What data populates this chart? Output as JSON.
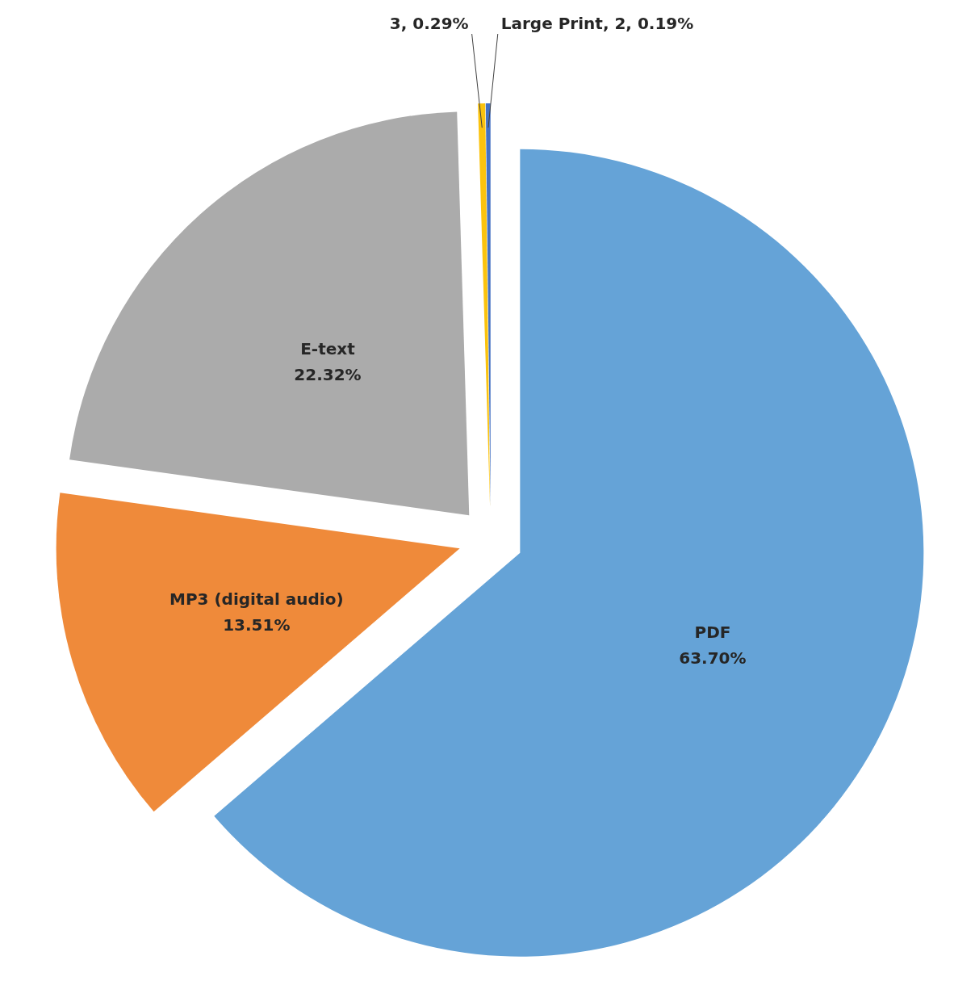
{
  "chart_data": {
    "type": "pie",
    "categories": [
      "PDF",
      "MP3 (digital audio)",
      "E-text",
      null,
      "Large Print"
    ],
    "values": [
      63.7,
      13.51,
      22.32,
      0.29,
      0.19
    ],
    "colors": [
      "#65a3d7",
      "#ef8a3a",
      "#ababab",
      "#fbc30e",
      "#4472c4"
    ],
    "value_labels": [
      "63.70%",
      "13.51%",
      "22.32%",
      "3, 0.29%",
      "2, 0.19%"
    ]
  }
}
